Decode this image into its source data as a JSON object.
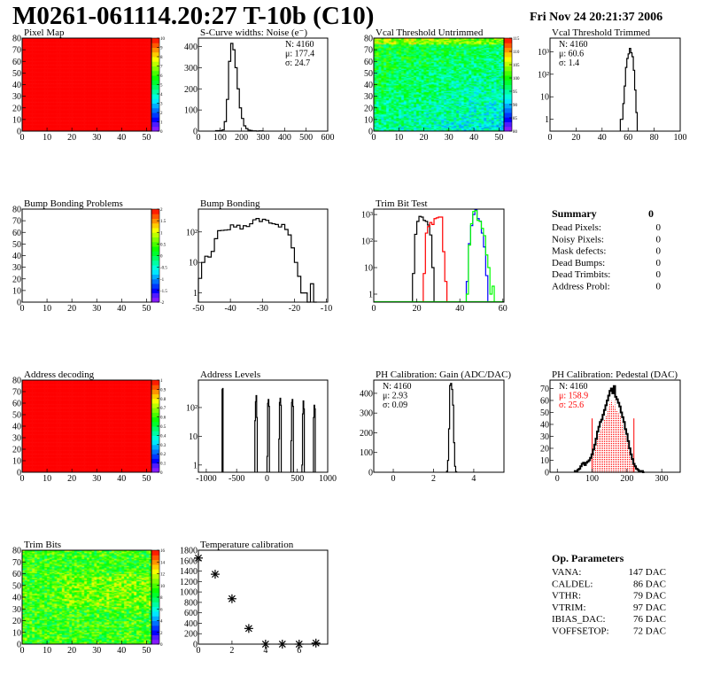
{
  "header": {
    "title": "M0261-061114.20:27 T-10b (C10)",
    "date": "Fri Nov 24 20:21:37 2006"
  },
  "chart_data": [
    {
      "id": "pixel-map",
      "title": "Pixel Map",
      "type": "heatmap",
      "xlim": [
        0,
        52
      ],
      "ylim": [
        0,
        80
      ],
      "xticks": [
        0,
        10,
        20,
        30,
        40,
        50
      ],
      "yticks": [
        0,
        10,
        20,
        30,
        40,
        50,
        60,
        70,
        80
      ],
      "zlim": [
        0,
        10
      ],
      "zticks": [
        "0",
        "1",
        "2",
        "3",
        "4",
        "5",
        "6",
        "7",
        "8",
        "9",
        "10"
      ],
      "uniform_value": 10
    },
    {
      "id": "s-curve",
      "title": "S-Curve widths: Noise (e⁻)",
      "type": "bar",
      "xlim": [
        0,
        600
      ],
      "ylim": [
        0,
        440
      ],
      "xticks": [
        0,
        100,
        200,
        300,
        400,
        500,
        600
      ],
      "yticks": [
        0,
        100,
        200,
        300,
        400
      ],
      "series": [
        {
          "x0": 80,
          "dx": 10,
          "color": "#000000",
          "values": [
            2,
            2,
            2,
            6,
            45,
            150,
            330,
            415,
            385,
            300,
            200,
            110,
            60,
            25,
            12,
            5,
            3,
            1,
            1,
            0,
            1,
            1
          ]
        }
      ],
      "stats": [
        {
          "text": "N: 4160",
          "color": "#000000"
        },
        {
          "text": "μ: 177.4",
          "color": "#000000"
        },
        {
          "text": "σ: 24.7",
          "color": "#000000"
        }
      ],
      "stats_pos": "top-right"
    },
    {
      "id": "vcal-untrimmed",
      "title": "Vcal Threshold Untrimmed",
      "type": "heatmap",
      "xlim": [
        0,
        52
      ],
      "ylim": [
        0,
        80
      ],
      "xticks": [
        0,
        10,
        20,
        30,
        40,
        50
      ],
      "yticks": [
        0,
        10,
        20,
        30,
        40,
        50,
        60,
        70,
        80
      ],
      "zlim": [
        80,
        117
      ],
      "zticks": [
        "80",
        "85",
        "90",
        "95",
        "100",
        "105",
        "110",
        "115"
      ]
    },
    {
      "id": "vcal-trimmed",
      "title": "Vcal Threshold Trimmed",
      "type": "bar",
      "log": true,
      "xlim": [
        0,
        100
      ],
      "ylim": [
        0.3,
        4000
      ],
      "xticks": [
        0,
        20,
        40,
        60,
        80,
        100
      ],
      "yticks": [
        1,
        10,
        100,
        1000
      ],
      "ytick_labels": [
        "1",
        "10",
        "10²",
        "10³"
      ],
      "series": [
        {
          "x0": 54,
          "dx": 1,
          "color": "#000000",
          "values": [
            1,
            1,
            5,
            30,
            200,
            500,
            800,
            1400,
            900,
            600,
            150,
            20,
            2
          ]
        }
      ],
      "stats": [
        {
          "text": "N: 4160",
          "color": "#000000"
        },
        {
          "text": "μ: 60.6",
          "color": "#000000"
        },
        {
          "text": "σ:  1.4",
          "color": "#000000"
        }
      ],
      "stats_pos": "top-left"
    },
    {
      "id": "bump-bonding-problems",
      "title": "Bump Bonding Problems",
      "type": "heatmap",
      "xlim": [
        0,
        52
      ],
      "ylim": [
        0,
        80
      ],
      "xticks": [
        0,
        10,
        20,
        30,
        40,
        50
      ],
      "yticks": [
        0,
        10,
        20,
        30,
        40,
        50,
        60,
        70,
        80
      ],
      "zlim": [
        -2,
        2
      ],
      "zticks": [
        "-2",
        "-1.5",
        "-1",
        "-0.5",
        "0",
        "0.5",
        "1",
        "1.5",
        "2"
      ],
      "empty": true
    },
    {
      "id": "bump-bonding",
      "title": "Bump Bonding",
      "type": "bar",
      "log": true,
      "xlim": [
        -50,
        -9.6
      ],
      "ylim": [
        0.5,
        560
      ],
      "xticks": [
        -50,
        -40,
        -30,
        -20,
        -10
      ],
      "yticks": [
        1,
        10,
        100
      ],
      "ytick_labels": [
        "1",
        "10",
        "10²"
      ],
      "series": [
        {
          "x0": -50,
          "dx": 1,
          "color": "#000000",
          "values": [
            3,
            10,
            16,
            15,
            23,
            60,
            110,
            112,
            115,
            118,
            170,
            145,
            165,
            125,
            160,
            150,
            185,
            250,
            275,
            220,
            260,
            240,
            195,
            185,
            175,
            145,
            175,
            120,
            80,
            30,
            10,
            3.5,
            1,
            1,
            0,
            2,
            0
          ]
        }
      ]
    },
    {
      "id": "trim-bit-test",
      "title": "Trim Bit Test",
      "type": "bar",
      "log": true,
      "xlim": [
        0,
        60.5
      ],
      "ylim": [
        0.5,
        1600
      ],
      "xticks": [
        0,
        20,
        40,
        60
      ],
      "yticks": [
        1,
        10,
        100,
        1000
      ],
      "ytick_labels": [
        "1",
        "10",
        "10²",
        "10³"
      ],
      "series": [
        {
          "x0": 18,
          "dx": 1,
          "color": "#000000",
          "values": [
            6,
            180,
            550,
            850,
            800,
            600,
            550,
            400,
            170,
            10
          ]
        },
        {
          "x0": 23,
          "dx": 1,
          "color": "#ff0000",
          "values": [
            6,
            200,
            350,
            500,
            420,
            700,
            750,
            800,
            800,
            40,
            3
          ]
        },
        {
          "x0": 43,
          "dx": 1,
          "color": "#0000ff",
          "values": [
            3,
            80,
            380,
            1000,
            1500,
            700,
            560,
            200,
            60,
            5
          ]
        },
        {
          "x0": 43,
          "dx": 1,
          "color": "#00ff00",
          "values": [
            1,
            70,
            450,
            1300,
            1400,
            600,
            550,
            300,
            160,
            30,
            10,
            1,
            2
          ]
        }
      ]
    },
    {
      "id": "summary",
      "title": "Summary",
      "value": "0",
      "rows": [
        {
          "label": "Dead Pixels:",
          "value": "0"
        },
        {
          "label": "Noisy Pixels:",
          "value": "0"
        },
        {
          "label": "Mask defects:",
          "value": "0"
        },
        {
          "label": "Dead Bumps:",
          "value": "0"
        },
        {
          "label": "Dead Trimbits:",
          "value": "0"
        },
        {
          "label": "Address Probl:",
          "value": "0"
        }
      ]
    },
    {
      "id": "address-decoding",
      "title": "Address decoding",
      "type": "heatmap",
      "xlim": [
        0,
        52
      ],
      "ylim": [
        0,
        80
      ],
      "xticks": [
        0,
        10,
        20,
        30,
        40,
        50
      ],
      "yticks": [
        0,
        10,
        20,
        30,
        40,
        50,
        60,
        70,
        80
      ],
      "zlim": [
        0,
        1
      ],
      "zticks": [
        "0",
        "0.1",
        "0.2",
        "0.3",
        "0.4",
        "0.5",
        "0.6",
        "0.7",
        "0.8",
        "0.9",
        "1"
      ],
      "uniform_value": 1
    },
    {
      "id": "address-levels",
      "title": "Address Levels",
      "type": "bar",
      "log": true,
      "xlim": [
        -1130,
        1000
      ],
      "ylim": [
        0.56,
        900
      ],
      "xticks": [
        -1000,
        -500,
        0,
        500,
        1000
      ],
      "yticks": [
        1,
        10,
        100
      ],
      "ytick_labels": [
        "1",
        "10",
        "10²"
      ],
      "series": [
        {
          "x0": -740,
          "dx": 8,
          "color": "#000000",
          "values": [
            420,
            460
          ]
        },
        {
          "x0": -200,
          "dx": 10,
          "color": "#000000",
          "values": [
            35,
            160,
            260,
            45
          ]
        },
        {
          "x0": 0,
          "dx": 10,
          "color": "#000000",
          "values": [
            2,
            140,
            190,
            110
          ]
        },
        {
          "x0": 195,
          "dx": 10,
          "color": "#000000",
          "values": [
            8,
            150,
            210,
            120
          ]
        },
        {
          "x0": 395,
          "dx": 10,
          "color": "#000000",
          "values": [
            7,
            150,
            190,
            110
          ]
        },
        {
          "x0": 575,
          "dx": 10,
          "color": "#000000",
          "values": [
            1,
            60,
            170,
            90
          ]
        },
        {
          "x0": 765,
          "dx": 10,
          "color": "#000000",
          "values": [
            45,
            120,
            90
          ]
        }
      ]
    },
    {
      "id": "ph-gain",
      "title": "PH Calibration: Gain (ADC/DAC)",
      "type": "bar",
      "xlim": [
        -0.97,
        5.5
      ],
      "ylim": [
        0,
        467
      ],
      "xticks": [
        0,
        2,
        4
      ],
      "yticks": [
        0,
        100,
        200,
        300,
        400
      ],
      "series": [
        {
          "x0": 2.65,
          "dx": 0.05,
          "color": "#000000",
          "values": [
            5,
            60,
            220,
            440,
            450,
            420,
            340,
            150,
            30,
            3
          ]
        }
      ],
      "stats": [
        {
          "text": "N: 4160",
          "color": "#000000"
        },
        {
          "text": "μ: 2.93",
          "color": "#000000"
        },
        {
          "text": "σ: 0.09",
          "color": "#000000"
        }
      ],
      "stats_pos": "top-left"
    },
    {
      "id": "ph-pedestal",
      "title": "PH Calibration: Pedestal (DAC)",
      "type": "bar",
      "xlim": [
        -21,
        353
      ],
      "ylim": [
        0,
        77
      ],
      "xticks": [
        0,
        100,
        200,
        300
      ],
      "yticks": [
        0,
        10,
        20,
        30,
        40,
        50,
        60,
        70
      ],
      "fit_range": [
        100,
        220
      ],
      "fit_color": "#ff0000",
      "fit_line_height": 45,
      "series": [
        {
          "x0": 50,
          "dx": 4,
          "color": "#000000",
          "values": [
            1,
            1,
            2,
            3,
            5,
            7,
            8,
            6,
            8,
            9,
            10,
            12,
            15,
            19,
            23,
            28,
            34,
            38,
            42,
            44,
            48,
            52,
            56,
            60,
            64,
            68,
            70,
            66,
            72,
            63,
            61,
            58,
            55,
            50,
            46,
            42,
            36,
            32,
            26,
            20,
            15,
            11,
            7,
            5,
            3,
            2,
            1,
            1,
            1,
            0
          ]
        }
      ],
      "stats": [
        {
          "text": "N: 4160",
          "color": "#000000"
        },
        {
          "text": "μ: 158.9",
          "color": "#ff0000"
        },
        {
          "text": "σ: 25.6",
          "color": "#ff0000"
        }
      ],
      "stats_pos": "top-left"
    },
    {
      "id": "trim-bits",
      "title": "Trim Bits",
      "type": "heatmap",
      "xlim": [
        0,
        52
      ],
      "ylim": [
        0,
        80
      ],
      "xticks": [
        0,
        10,
        20,
        30,
        40,
        50
      ],
      "yticks": [
        0,
        10,
        20,
        30,
        40,
        50,
        60,
        70,
        80
      ],
      "zlim": [
        0,
        16
      ],
      "zticks": [
        "0",
        "2",
        "4",
        "6",
        "8",
        "10",
        "12",
        "14",
        "16"
      ]
    },
    {
      "id": "temperature-calibration",
      "title": "Temperature calibration",
      "type": "scatter",
      "marker": "star",
      "xlim": [
        0,
        7.7
      ],
      "ylim": [
        0,
        1800
      ],
      "xticks": [
        0,
        2,
        4,
        6
      ],
      "yticks": [
        0,
        200,
        400,
        600,
        800,
        1000,
        1200,
        1400,
        1600,
        1800
      ],
      "x": [
        0,
        1,
        2,
        3,
        4,
        5,
        6,
        7
      ],
      "y": [
        1650,
        1340,
        870,
        300,
        0,
        0,
        0,
        20
      ]
    },
    {
      "id": "op-parameters",
      "title": "Op. Parameters",
      "rows": [
        {
          "label": "VANA:",
          "value": "147 DAC"
        },
        {
          "label": "CALDEL:",
          "value": "86 DAC"
        },
        {
          "label": "VTHR:",
          "value": "79 DAC"
        },
        {
          "label": "VTRIM:",
          "value": "97 DAC"
        },
        {
          "label": "IBIAS_DAC:",
          "value": "76 DAC"
        },
        {
          "label": "VOFFSETOP:",
          "value": "72 DAC"
        }
      ]
    }
  ]
}
